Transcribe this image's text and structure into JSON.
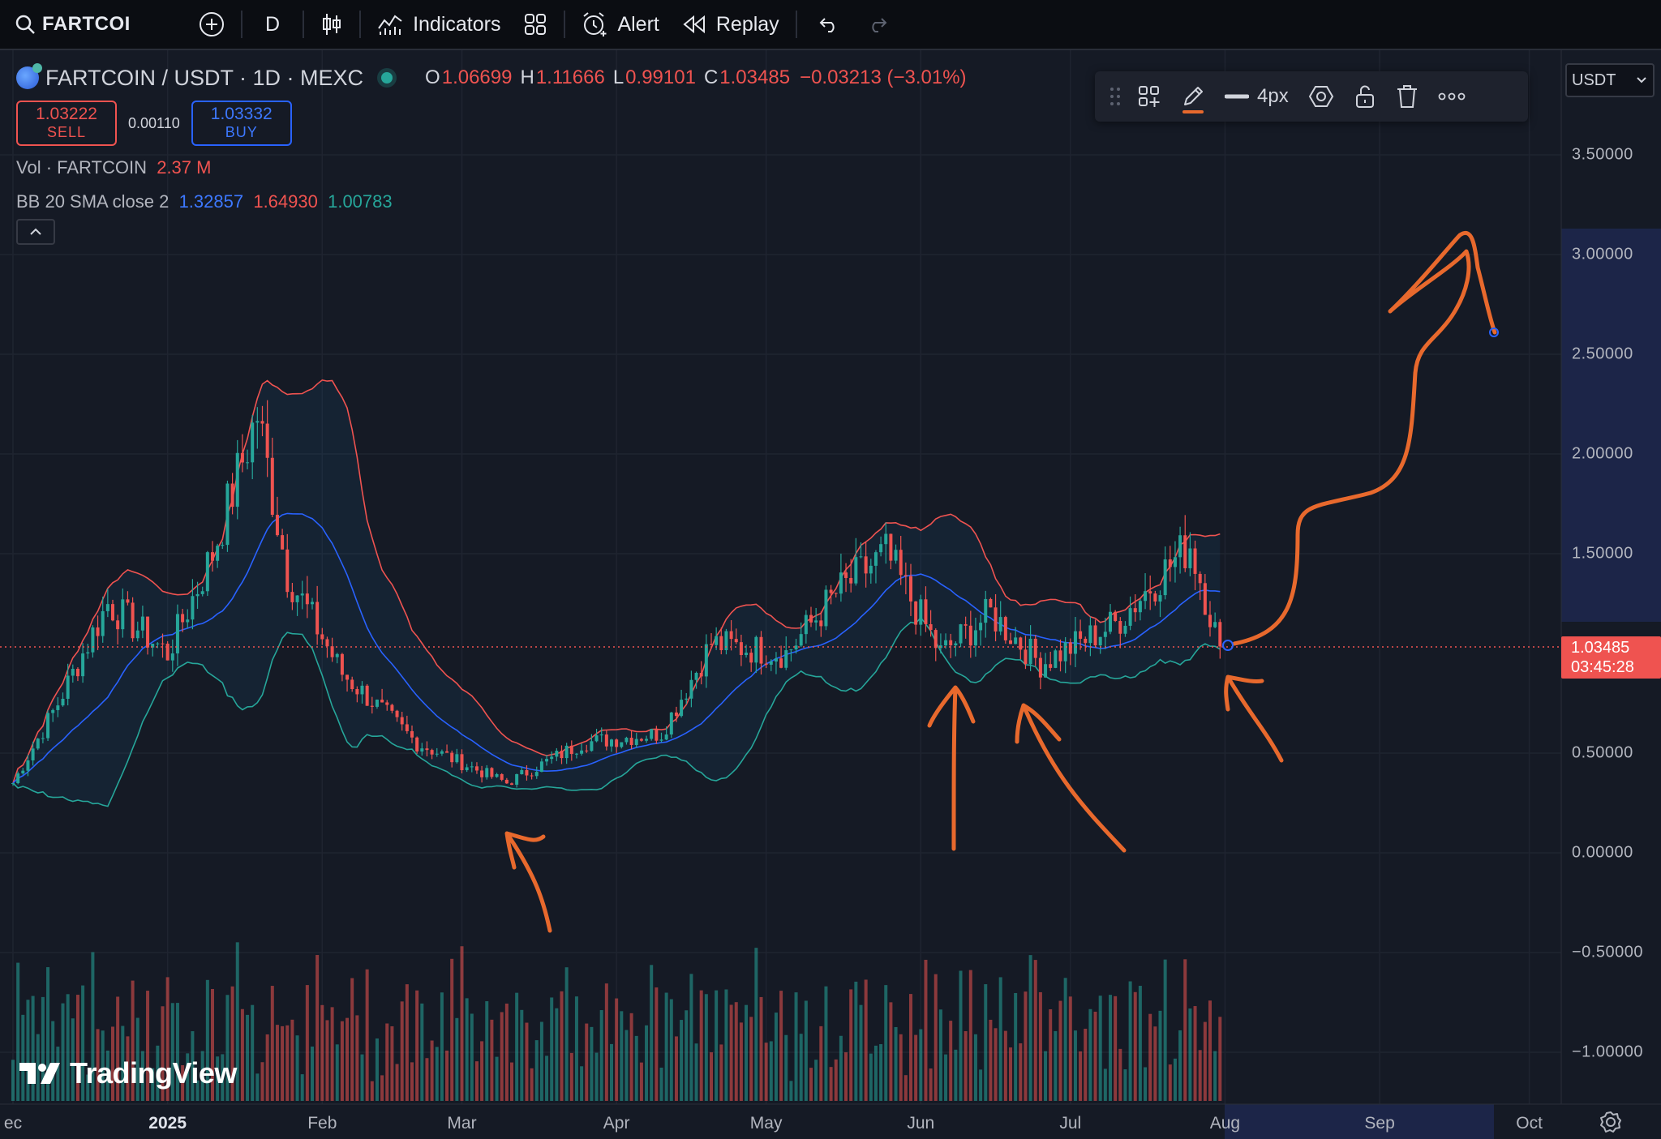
{
  "toolbar": {
    "symbol": "FARTCOI",
    "interval": "D",
    "indicators_label": "Indicators",
    "alert_label": "Alert",
    "replay_label": "Replay"
  },
  "legend": {
    "title": "FARTCOIN / USDT · 1D · MEXC",
    "open_key": "O",
    "open": "1.06699",
    "high_key": "H",
    "high": "1.11666",
    "low_key": "L",
    "low": "0.99101",
    "close_key": "C",
    "close": "1.03485",
    "change": "−0.03213 (−3.01%)",
    "sell_price": "1.03222",
    "sell_label": "SELL",
    "spread": "0.00110",
    "buy_price": "1.03332",
    "buy_label": "BUY",
    "vol_label": "Vol · FARTCOIN",
    "vol_value": "2.37 M",
    "bb_label": "BB 20 SMA close 2",
    "bb_basis": "1.32857",
    "bb_upper": "1.64930",
    "bb_lower": "1.00783"
  },
  "drawing_toolbar": {
    "width_label": "4px",
    "active_color": "#e8692d"
  },
  "currency": "USDT",
  "price_axis": [
    {
      "label": "3.50000",
      "value": 3.5
    },
    {
      "label": "3.00000",
      "value": 3.0
    },
    {
      "label": "2.50000",
      "value": 2.5
    },
    {
      "label": "2.00000",
      "value": 2.0
    },
    {
      "label": "1.50000",
      "value": 1.5
    },
    {
      "label": "0.50000",
      "value": 0.5
    },
    {
      "label": "0.00000",
      "value": 0.0
    },
    {
      "label": "−0.50000",
      "value": -0.5
    },
    {
      "label": "−1.00000",
      "value": -1.0
    }
  ],
  "last_price": {
    "price": "1.03485",
    "countdown": "03:45:28"
  },
  "time_axis": [
    "ec",
    "2025",
    "Feb",
    "Mar",
    "Apr",
    "May",
    "Jun",
    "Jul",
    "Aug",
    "Sep",
    "Oct"
  ],
  "watermark": "TradingView",
  "colors": {
    "up": "#26a69a",
    "down": "#ef5350",
    "upper_band": "#ef5350",
    "basis": "#2962ff",
    "lower_band": "#26a69a",
    "annotation": "#e8692d"
  },
  "chart_data": {
    "type": "candlestick",
    "symbol": "FARTCOIN / USDT",
    "interval": "1D",
    "exchange": "MEXC",
    "x_range": [
      "2024-12-01",
      "2025-10-31"
    ],
    "ylim": [
      -1.2,
      3.75
    ],
    "grid": true,
    "last_close": 1.03485,
    "close_series_approx": [
      {
        "date": "2024-12-01",
        "close": 0.35
      },
      {
        "date": "2024-12-10",
        "close": 0.75
      },
      {
        "date": "2024-12-20",
        "close": 1.25
      },
      {
        "date": "2025-01-01",
        "close": 1.0
      },
      {
        "date": "2025-01-10",
        "close": 1.5
      },
      {
        "date": "2025-01-19",
        "close": 2.2
      },
      {
        "date": "2025-01-25",
        "close": 1.4
      },
      {
        "date": "2025-02-05",
        "close": 0.9
      },
      {
        "date": "2025-02-20",
        "close": 0.55
      },
      {
        "date": "2025-03-10",
        "close": 0.35
      },
      {
        "date": "2025-03-25",
        "close": 0.55
      },
      {
        "date": "2025-04-10",
        "close": 0.6
      },
      {
        "date": "2025-04-20",
        "close": 1.05
      },
      {
        "date": "2025-05-05",
        "close": 1.0
      },
      {
        "date": "2025-05-15",
        "close": 1.3
      },
      {
        "date": "2025-05-25",
        "close": 1.5
      },
      {
        "date": "2025-06-05",
        "close": 1.0
      },
      {
        "date": "2025-06-15",
        "close": 1.2
      },
      {
        "date": "2025-06-25",
        "close": 0.95
      },
      {
        "date": "2025-07-10",
        "close": 1.15
      },
      {
        "date": "2025-07-25",
        "close": 1.55
      },
      {
        "date": "2025-07-31",
        "close": 1.03
      }
    ],
    "bollinger_bands": {
      "period": 20,
      "stddev": 2,
      "basis_last": 1.32857,
      "upper_last": 1.6493,
      "lower_last": 1.00783
    },
    "annotations": "hand-drawn orange arrows pointing at lower band touches (Mar, early Jun, late Jun, Aug) and a projected curve rising toward ~3.0"
  }
}
